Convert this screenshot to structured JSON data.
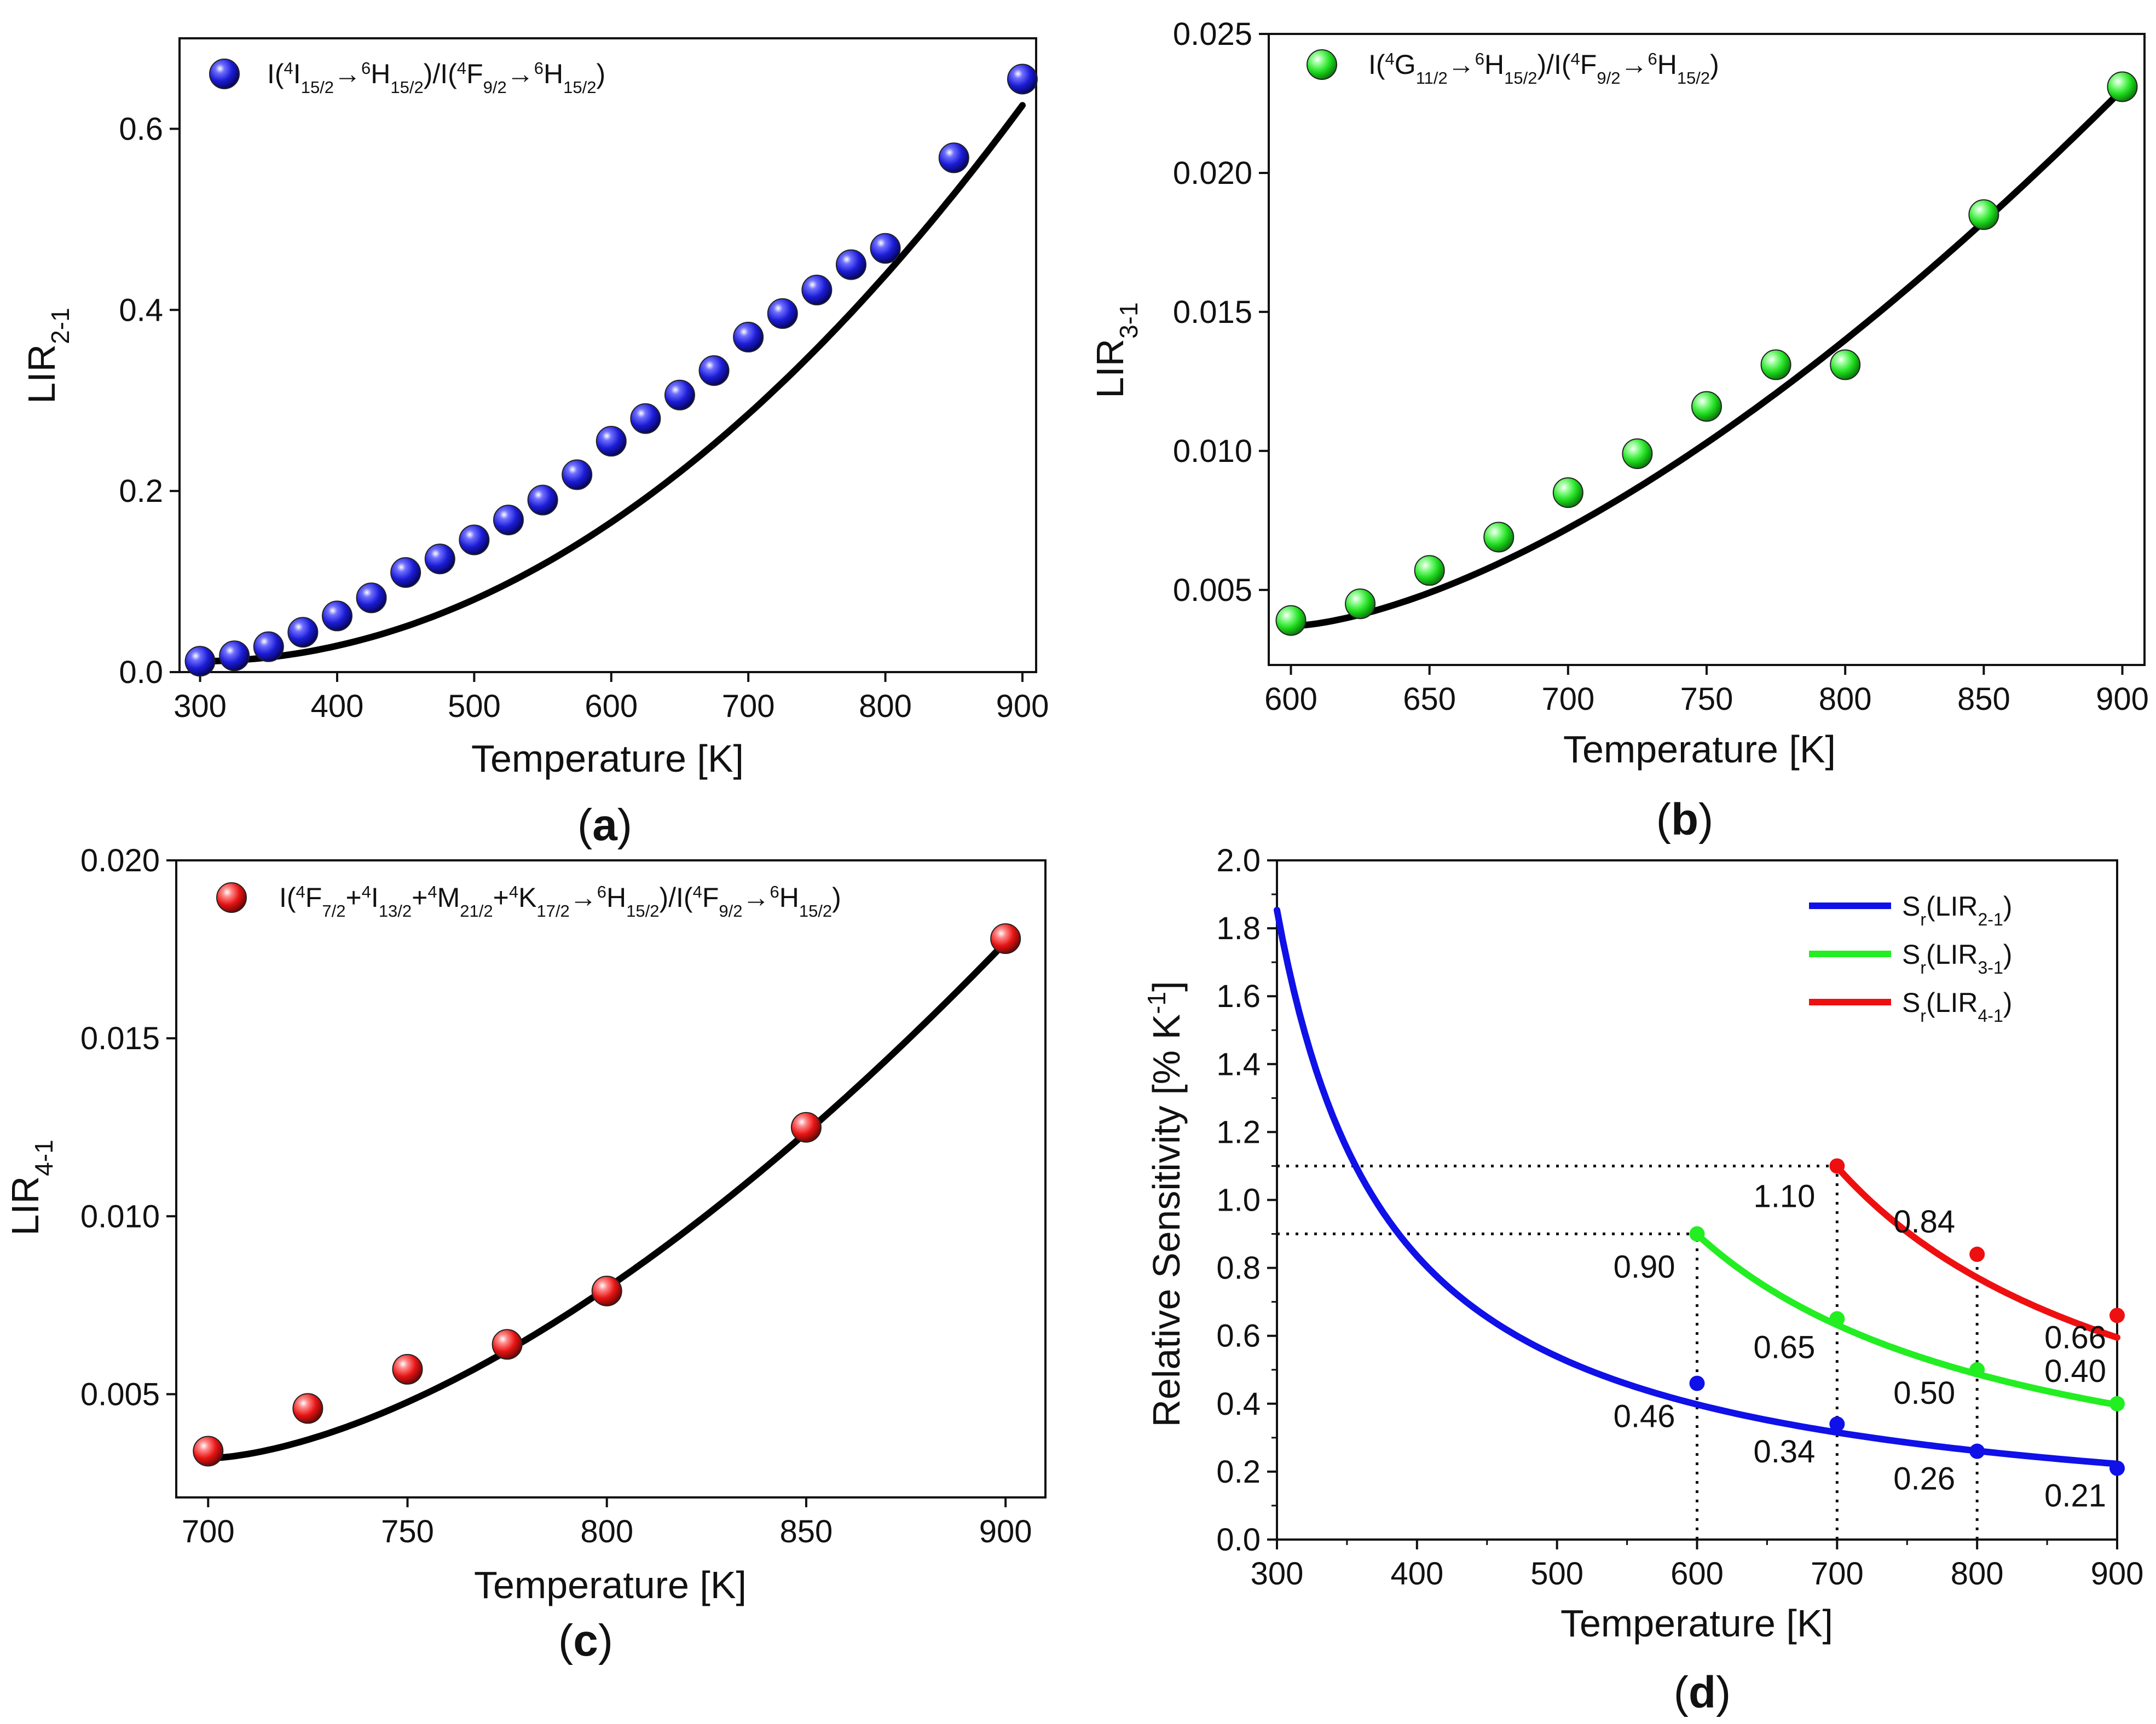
{
  "figure": {
    "panels": [
      "(a)",
      "(b)",
      "(c)",
      "(d)"
    ]
  },
  "colors": {
    "blue": "#1c1cd6",
    "green": "#22e022",
    "red": "#e81414",
    "fit": "#000000",
    "sens_blue": "#1010e8",
    "sens_green": "#22ee22",
    "sens_red": "#ee1010"
  },
  "chart_data": [
    {
      "id": "a",
      "panel_label": [
        "(",
        "a",
        ")"
      ],
      "type": "scatter",
      "xlabel": "Temperature [K]",
      "ylabel": [
        "LIR",
        "2-1",
        ""
      ],
      "xlim": [
        285,
        910
      ],
      "ylim": [
        0,
        0.7
      ],
      "xticks": [
        300,
        400,
        500,
        600,
        700,
        800,
        900
      ],
      "xtick_labels": [
        "300",
        "400",
        "500",
        "600",
        "700",
        "800",
        "900"
      ],
      "yticks": [
        0,
        0.2,
        0.4,
        0.6
      ],
      "ytick_labels": [
        "0.0",
        "0.2",
        "0.4",
        "0.6"
      ],
      "legend_color": "blue",
      "legend": [
        "I(",
        "4",
        "I",
        "15/2",
        "→",
        "6",
        "H",
        "15/2",
        ")/I(",
        "4",
        "F",
        "9/2",
        "→",
        "6",
        "H",
        "15/2",
        ")"
      ],
      "x": [
        300,
        325,
        350,
        375,
        400,
        425,
        450,
        475,
        500,
        525,
        550,
        575,
        600,
        625,
        650,
        675,
        700,
        725,
        750,
        775,
        800,
        850,
        900
      ],
      "y": [
        0.012,
        0.018,
        0.028,
        0.044,
        0.062,
        0.082,
        0.11,
        0.125,
        0.146,
        0.168,
        0.19,
        0.218,
        0.255,
        0.28,
        0.306,
        0.333,
        0.37,
        0.396,
        0.422,
        0.45,
        0.468,
        0.568,
        0.655
      ],
      "fit": {
        "x0": 300,
        "x1": 900,
        "y0": 0.012,
        "y1": 0.626,
        "power": 2.0
      }
    },
    {
      "id": "b",
      "panel_label": [
        "(",
        "b",
        ")"
      ],
      "type": "scatter",
      "xlabel": "Temperature [K]",
      "ylabel": [
        "LIR",
        "3-1",
        ""
      ],
      "xlim": [
        592,
        908
      ],
      "ylim": [
        0.0023,
        0.025
      ],
      "xticks": [
        600,
        650,
        700,
        750,
        800,
        850,
        900
      ],
      "xtick_labels": [
        "600",
        "650",
        "700",
        "750",
        "800",
        "850",
        "900"
      ],
      "yticks": [
        0.005,
        0.01,
        0.015,
        0.02,
        0.025
      ],
      "ytick_labels": [
        "0.005",
        "0.010",
        "0.015",
        "0.020",
        "0.025"
      ],
      "legend_color": "green",
      "legend": [
        "I(",
        "4",
        "G",
        "11/2",
        "→",
        "6",
        "H",
        "15/2",
        ")/I(",
        "4",
        "F",
        "9/2",
        "→",
        "6",
        "H",
        "15/2",
        ")"
      ],
      "x": [
        600,
        625,
        650,
        675,
        700,
        725,
        750,
        775,
        800,
        850,
        900
      ],
      "y": [
        0.0039,
        0.0045,
        0.0057,
        0.0069,
        0.0085,
        0.0099,
        0.0116,
        0.0131,
        0.0131,
        0.0185,
        0.0231
      ],
      "fit": {
        "x0": 600,
        "x1": 900,
        "y0": 0.0037,
        "y1": 0.023,
        "power": 1.55
      }
    },
    {
      "id": "c",
      "panel_label": [
        "(",
        "c",
        ")"
      ],
      "type": "scatter",
      "xlabel": "Temperature [K]",
      "ylabel": [
        "LIR",
        "4-1",
        ""
      ],
      "xlim": [
        692,
        910
      ],
      "ylim": [
        0.0021,
        0.02
      ],
      "xticks": [
        700,
        750,
        800,
        850,
        900
      ],
      "xtick_labels": [
        "700",
        "750",
        "800",
        "850",
        "900"
      ],
      "yticks": [
        0.005,
        0.01,
        0.015,
        0.02
      ],
      "ytick_labels": [
        "0.005",
        "0.010",
        "0.015",
        "0.020"
      ],
      "legend_color": "red",
      "legend": [
        "I(",
        "4",
        "F",
        "7/2",
        "+",
        "4",
        "I",
        "13/2",
        "+",
        "4",
        "M",
        "21/2",
        "+",
        "4",
        "K",
        "17/2",
        "→",
        "6",
        "H",
        "15/2",
        ")/I(",
        "4",
        "F",
        "9/2",
        "→",
        "6",
        "H",
        "15/2",
        ")"
      ],
      "x": [
        700,
        725,
        750,
        775,
        800,
        850,
        900
      ],
      "y": [
        0.0034,
        0.0046,
        0.0057,
        0.0064,
        0.0079,
        0.0125,
        0.0178
      ],
      "fit": {
        "x0": 700,
        "x1": 900,
        "y0": 0.0032,
        "y1": 0.0177,
        "power": 1.6
      }
    },
    {
      "id": "d",
      "panel_label": [
        "(",
        "d",
        ")"
      ],
      "type": "line",
      "xlabel": "Temperature [K]",
      "ylabel": "Relative Sensitivity [% K",
      "ylabel_sup": "-1",
      "ylabel_end": "]",
      "xlim": [
        300,
        900
      ],
      "ylim": [
        0,
        2.0
      ],
      "xticks": [
        300,
        400,
        500,
        600,
        700,
        800,
        900
      ],
      "xtick_labels": [
        "300",
        "400",
        "500",
        "600",
        "700",
        "800",
        "900"
      ],
      "yticks": [
        0,
        0.2,
        0.4,
        0.6,
        0.8,
        1.0,
        1.2,
        1.4,
        1.6,
        1.8,
        2.0
      ],
      "ytick_labels": [
        "0.0",
        "0.2",
        "0.4",
        "0.6",
        "0.8",
        "1.0",
        "1.2",
        "1.4",
        "1.6",
        "1.8",
        "2.0"
      ],
      "series": [
        {
          "name": [
            "S",
            "r",
            "(LIR",
            "2-1",
            ")"
          ],
          "color": "sens_blue",
          "curve": {
            "x0": 300,
            "x1": 900,
            "model": "a/(x-c)",
            "a": 152,
            "c": 218
          },
          "markers": [
            {
              "x": 600,
              "y": 0.46,
              "label": "0.46"
            },
            {
              "x": 700,
              "y": 0.34,
              "label": "0.34"
            },
            {
              "x": 800,
              "y": 0.26,
              "label": "0.26"
            },
            {
              "x": 900,
              "y": 0.21,
              "label": "0.21"
            }
          ]
        },
        {
          "name": [
            "S",
            "r",
            "(LIR",
            "3-1",
            ")"
          ],
          "color": "sens_green",
          "curve": {
            "x0": 600,
            "x1": 900,
            "model": "a/(x-c)",
            "a": 213,
            "c": 363
          },
          "markers": [
            {
              "x": 600,
              "y": 0.9,
              "label": "0.90"
            },
            {
              "x": 700,
              "y": 0.65,
              "label": "0.65"
            },
            {
              "x": 800,
              "y": 0.5,
              "label": "0.50"
            },
            {
              "x": 900,
              "y": 0.4,
              "label": "0.40"
            }
          ]
        },
        {
          "name": [
            "S",
            "r",
            "(LIR",
            "4-1",
            ")"
          ],
          "color": "sens_red",
          "curve": {
            "x0": 700,
            "x1": 900,
            "model": "a/(x-c)",
            "a": 260,
            "c": 463
          },
          "markers": [
            {
              "x": 700,
              "y": 1.1,
              "label": "1.10"
            },
            {
              "x": 800,
              "y": 0.84,
              "label": "0.84"
            },
            {
              "x": 900,
              "y": 0.66,
              "label": "0.66"
            }
          ]
        }
      ],
      "dotted_guides": [
        {
          "kind": "h",
          "y": 1.1,
          "x0": 300,
          "x1": 700
        },
        {
          "kind": "h",
          "y": 0.9,
          "x0": 300,
          "x1": 600
        },
        {
          "kind": "v",
          "x": 600,
          "y0": 0,
          "y1": 0.9
        },
        {
          "kind": "v",
          "x": 700,
          "y0": 0,
          "y1": 1.1
        },
        {
          "kind": "v",
          "x": 800,
          "y0": 0,
          "y1": 0.84
        }
      ]
    }
  ]
}
